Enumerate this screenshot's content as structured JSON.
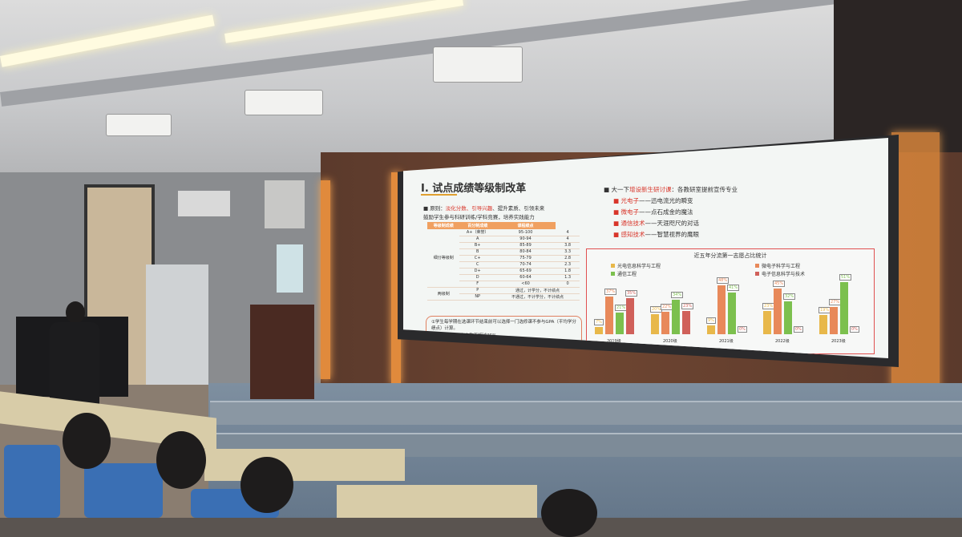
{
  "slide": {
    "title": "I.   试点成绩等级制改革",
    "principle_label": "原则：",
    "principle_red": "淡化分数、引导兴趣",
    "principle_rest": "、提升素质、引领未来",
    "bullet2": "鼓励学生参与科研训练/学科竞赛，培养实践能力",
    "table": {
      "headers": [
        "等级制成绩",
        "百分制成绩",
        "课程绩点"
      ],
      "group1": "细分等级制",
      "group2": "两级制",
      "rows": [
        [
          "A+（荣誉）",
          "95-100",
          "4"
        ],
        [
          "A",
          "90-94",
          "4"
        ],
        [
          "B+",
          "85-89",
          "3.8"
        ],
        [
          "B",
          "80-84",
          "3.3"
        ],
        [
          "C+",
          "75-79",
          "2.8"
        ],
        [
          "C",
          "70-74",
          "2.3"
        ],
        [
          "D+",
          "65-69",
          "1.8"
        ],
        [
          "D",
          "60-64",
          "1.3"
        ],
        [
          "F",
          "<60",
          "0"
        ]
      ],
      "rows2": [
        [
          "P",
          "通过，计学分，不计绩点"
        ],
        [
          "NP",
          "不通过，不计学分，不计绩点"
        ]
      ]
    },
    "note1": "①学生每学期在选课环节结束前可以选择一门选修课不参与GPA（平均学分绩点）计算。",
    "note2": "②每门课A及以上人数不超过35%",
    "right_intro_black": "大一下",
    "right_intro_red": "增设新生研讨课",
    "right_intro_rest": "：各教研室提前宣传专业",
    "courses": [
      {
        "name": "光电子",
        "desc": "——迅电流光的瞬变"
      },
      {
        "name": "微电子",
        "desc": "——点石成金的魔法"
      },
      {
        "name": "通信技术",
        "desc": "——天涯咫尺的对话"
      },
      {
        "name": "感知技术",
        "desc": "——智慧视界的鹰眼"
      }
    ]
  },
  "chart_data": {
    "type": "bar",
    "title": "近五年分流第一志愿占比统计",
    "categories": [
      "2019级",
      "2020级",
      "2021级",
      "2022级",
      "2023级"
    ],
    "series": [
      {
        "name": "光电信息科学与工程",
        "color": "#e8b84a",
        "values": [
          7,
          20,
          9,
          23,
          19
        ]
      },
      {
        "name": "微电子科学与工程",
        "color": "#e8895a",
        "values": [
          37,
          22,
          48,
          45,
          27
        ]
      },
      {
        "name": "通信工程",
        "color": "#7cc04e",
        "values": [
          21,
          34,
          41,
          32,
          51
        ]
      },
      {
        "name": "电子信息科学与技术",
        "color": "#d0605a",
        "values": [
          35,
          23,
          0,
          0,
          0
        ]
      }
    ],
    "unit": "%",
    "legend": "top"
  }
}
